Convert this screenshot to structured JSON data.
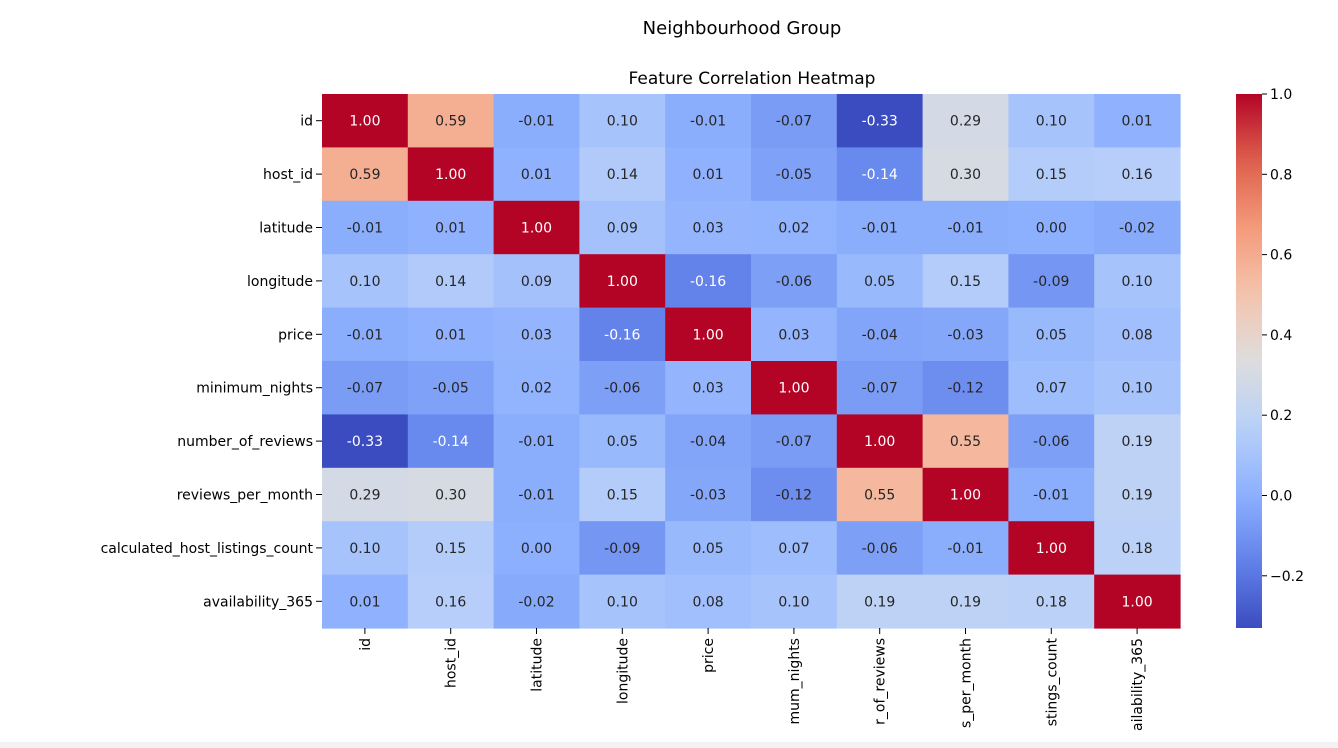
{
  "figure": {
    "suptitle": "Neighbourhood Group"
  },
  "chart_data": {
    "type": "heatmap",
    "title": "Feature Correlation Heatmap",
    "labels": [
      "id",
      "host_id",
      "latitude",
      "longitude",
      "price",
      "minimum_nights",
      "number_of_reviews",
      "reviews_per_month",
      "calculated_host_listings_count",
      "availability_365"
    ],
    "x_tick_labels_visible": [
      "id",
      "host_id",
      "latitude",
      "longitude",
      "price",
      "mum_nights",
      "r_of_reviews",
      "s_per_month",
      "stings_count",
      "ailability_365"
    ],
    "values": [
      [
        1.0,
        0.59,
        -0.01,
        0.1,
        -0.01,
        -0.07,
        -0.33,
        0.29,
        0.1,
        0.01
      ],
      [
        0.59,
        1.0,
        0.01,
        0.14,
        0.01,
        -0.05,
        -0.14,
        0.3,
        0.15,
        0.16
      ],
      [
        -0.01,
        0.01,
        1.0,
        0.09,
        0.03,
        0.02,
        -0.01,
        -0.01,
        0.0,
        -0.02
      ],
      [
        0.1,
        0.14,
        0.09,
        1.0,
        -0.16,
        -0.06,
        0.05,
        0.15,
        -0.09,
        0.1
      ],
      [
        -0.01,
        0.01,
        0.03,
        -0.16,
        1.0,
        0.03,
        -0.04,
        -0.03,
        0.05,
        0.08
      ],
      [
        -0.07,
        -0.05,
        0.02,
        -0.06,
        0.03,
        1.0,
        -0.07,
        -0.12,
        0.07,
        0.1
      ],
      [
        -0.33,
        -0.14,
        -0.01,
        0.05,
        -0.04,
        -0.07,
        1.0,
        0.55,
        -0.06,
        0.19
      ],
      [
        0.29,
        0.3,
        -0.01,
        0.15,
        -0.03,
        -0.12,
        0.55,
        1.0,
        -0.01,
        0.19
      ],
      [
        0.1,
        0.15,
        0.0,
        -0.09,
        0.05,
        0.07,
        -0.06,
        -0.01,
        1.0,
        0.18
      ],
      [
        0.01,
        0.16,
        -0.02,
        0.1,
        0.08,
        0.1,
        0.19,
        0.19,
        0.18,
        1.0
      ]
    ],
    "colormap": "coolwarm",
    "vmin": -0.33,
    "vmax": 1.0,
    "annotation_format": "0.00",
    "colorbar": {
      "ticks": [
        -0.2,
        0.0,
        0.2,
        0.4,
        0.6,
        0.8,
        1.0
      ],
      "tick_labels": [
        "−0.2",
        "0.0",
        "0.2",
        "0.4",
        "0.6",
        "0.8",
        "1.0"
      ]
    },
    "legend": "colorbar-right"
  }
}
